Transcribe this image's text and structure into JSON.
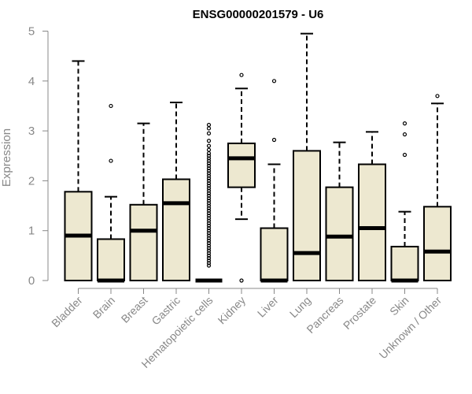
{
  "chart_data": {
    "type": "boxplot",
    "title": "ENSG00000201579 - U6",
    "xlabel": "",
    "ylabel": "Expression",
    "ylim": [
      0,
      5
    ],
    "yticks": [
      0,
      1,
      2,
      3,
      4,
      5
    ],
    "grid": false,
    "categories": [
      "Bladder",
      "Brain",
      "Breast",
      "Gastric",
      "Hematopoietic cells",
      "Kidney",
      "Liver",
      "Lung",
      "Pancreas",
      "Prostate",
      "Skin",
      "Unknown / Other"
    ],
    "boxes": [
      {
        "name": "Bladder",
        "whisker_low": 0,
        "q1": 0,
        "median": 0.9,
        "q3": 1.78,
        "whisker_high": 4.4,
        "outliers": []
      },
      {
        "name": "Brain",
        "whisker_low": 0,
        "q1": 0,
        "median": 0,
        "q3": 0.83,
        "whisker_high": 1.68,
        "outliers": [
          2.4,
          3.5
        ]
      },
      {
        "name": "Breast",
        "whisker_low": 0,
        "q1": 0,
        "median": 1.0,
        "q3": 1.52,
        "whisker_high": 3.15,
        "outliers": []
      },
      {
        "name": "Gastric",
        "whisker_low": 0,
        "q1": 0,
        "median": 1.55,
        "q3": 2.03,
        "whisker_high": 3.57,
        "outliers": []
      },
      {
        "name": "Hematopoietic cells",
        "whisker_low": 0,
        "q1": 0,
        "median": 0,
        "q3": 0,
        "whisker_high": 0,
        "outliers": [
          0.3,
          0.35,
          0.4,
          0.45,
          0.5,
          0.55,
          0.6,
          0.65,
          0.7,
          0.75,
          0.8,
          0.85,
          0.9,
          0.95,
          1.0,
          1.05,
          1.1,
          1.15,
          1.2,
          1.25,
          1.3,
          1.35,
          1.4,
          1.45,
          1.5,
          1.55,
          1.6,
          1.65,
          1.7,
          1.75,
          1.8,
          1.85,
          1.9,
          1.95,
          2.0,
          2.05,
          2.1,
          2.15,
          2.2,
          2.25,
          2.3,
          2.35,
          2.4,
          2.45,
          2.5,
          2.55,
          2.62,
          2.7,
          2.8,
          2.95,
          3.05,
          3.12
        ]
      },
      {
        "name": "Kidney",
        "whisker_low": 1.23,
        "q1": 1.87,
        "median": 2.45,
        "q3": 2.75,
        "whisker_high": 3.85,
        "outliers": [
          0,
          4.12
        ]
      },
      {
        "name": "Liver",
        "whisker_low": 0,
        "q1": 0,
        "median": 0,
        "q3": 1.05,
        "whisker_high": 2.33,
        "outliers": [
          2.82,
          4.0
        ]
      },
      {
        "name": "Lung",
        "whisker_low": 0,
        "q1": 0,
        "median": 0.55,
        "q3": 2.6,
        "whisker_high": 4.95,
        "outliers": []
      },
      {
        "name": "Pancreas",
        "whisker_low": 0,
        "q1": 0,
        "median": 0.88,
        "q3": 1.87,
        "whisker_high": 2.77,
        "outliers": []
      },
      {
        "name": "Prostate",
        "whisker_low": 0,
        "q1": 0,
        "median": 1.05,
        "q3": 2.33,
        "whisker_high": 2.98,
        "outliers": []
      },
      {
        "name": "Skin",
        "whisker_low": 0,
        "q1": 0,
        "median": 0,
        "q3": 0.68,
        "whisker_high": 1.38,
        "outliers": [
          2.52,
          2.93,
          3.15
        ]
      },
      {
        "name": "Unknown / Other",
        "whisker_low": 0,
        "q1": 0,
        "median": 0.58,
        "q3": 1.48,
        "whisker_high": 3.55,
        "outliers": [
          3.7
        ]
      }
    ],
    "colors": {
      "box_fill": "#ede8d0",
      "box_stroke": "#000000",
      "axis": "#888888"
    }
  }
}
